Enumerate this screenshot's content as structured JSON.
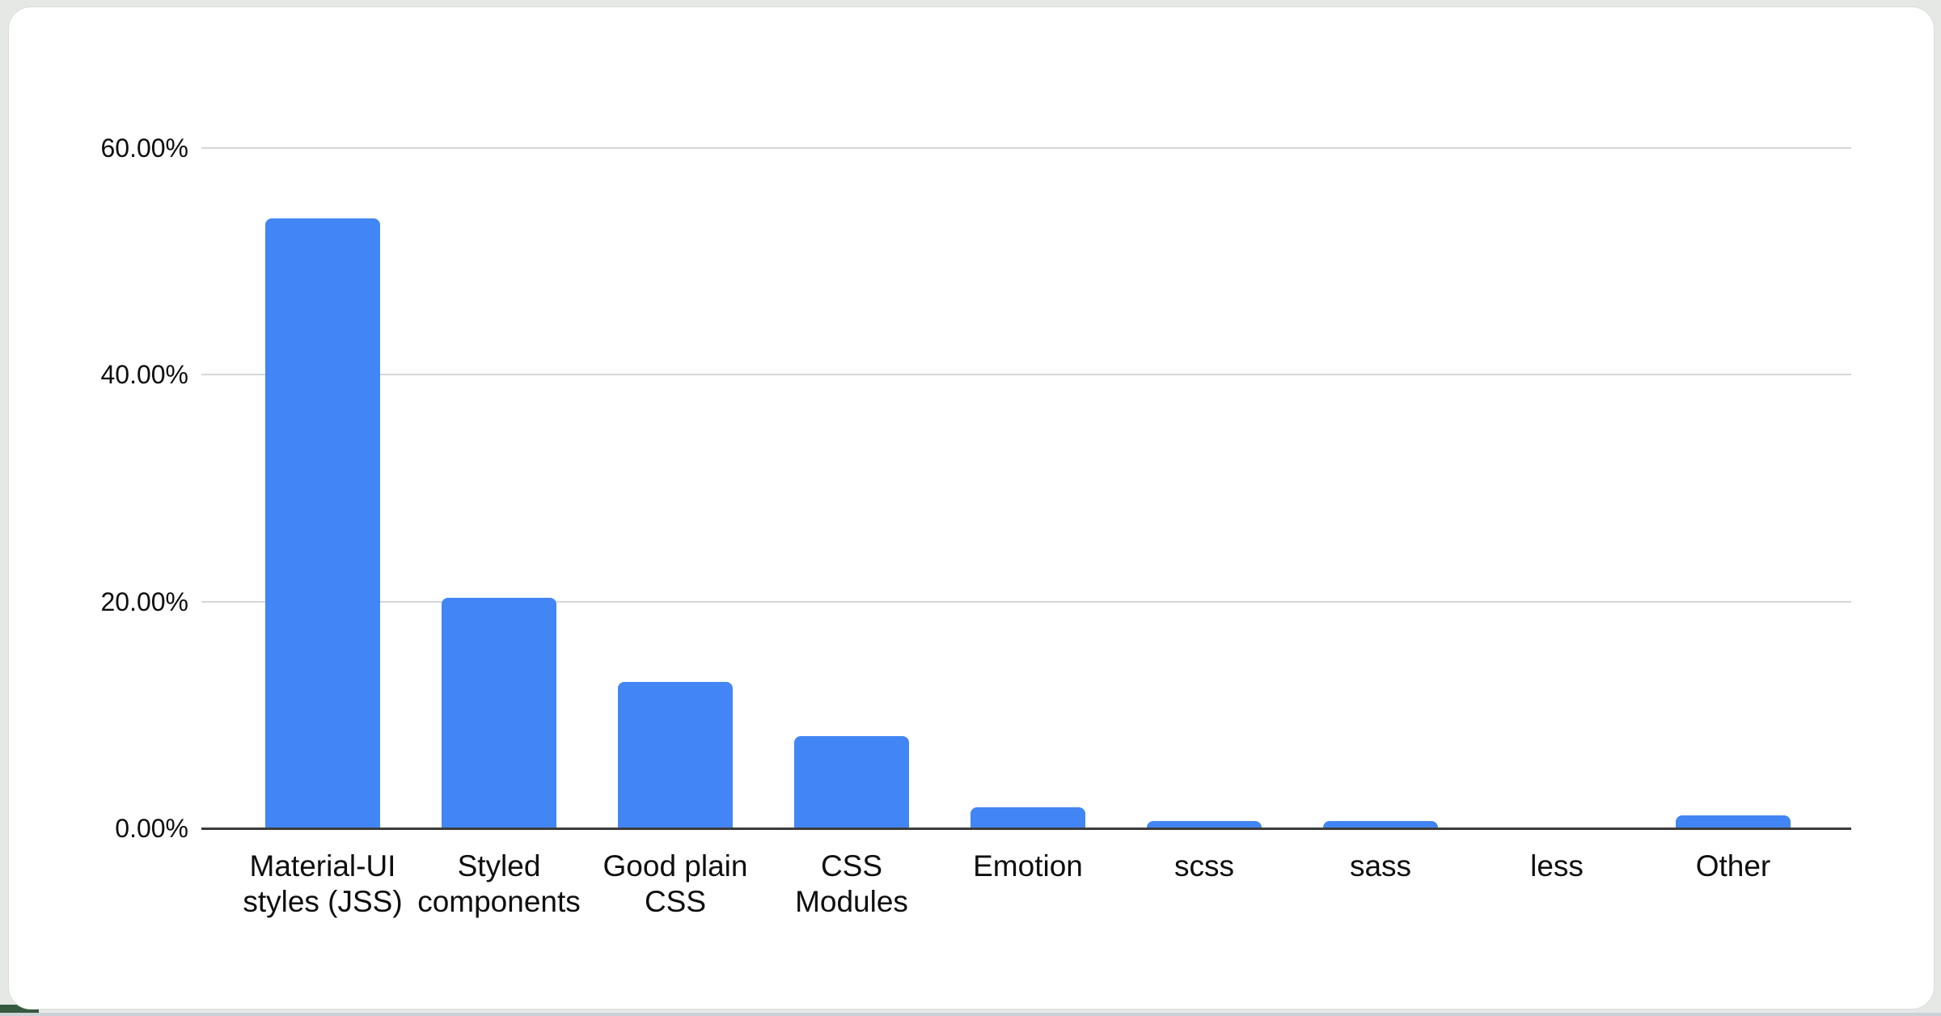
{
  "page": {
    "background_color": "#e6e8e6",
    "bottom_strip_color": "#ccd1d5",
    "corner_accent_color": "#35593f",
    "card_background": "#ffffff",
    "card_border_color": "#d9ddd9"
  },
  "chart_data": {
    "type": "bar",
    "title": "",
    "xlabel": "",
    "ylabel": "",
    "legend": "none",
    "grid": true,
    "value_unit": "percent",
    "categories": [
      "Material-UI styles (JSS)",
      "Styled components",
      "Good plain CSS",
      "CSS Modules",
      "Emotion",
      "scss",
      "sass",
      "less",
      "Other"
    ],
    "values": [
      53.8,
      20.3,
      12.9,
      8.1,
      1.85,
      0.65,
      0.65,
      0.05,
      1.15
    ],
    "y_ticks": [
      {
        "label": "0.00%",
        "value": 0
      },
      {
        "label": "20.00%",
        "value": 20
      },
      {
        "label": "40.00%",
        "value": 40
      },
      {
        "label": "60.00%",
        "value": 60
      }
    ],
    "ylim": [
      0,
      63
    ],
    "bar_color": "#4285f4",
    "gridline_color": "#d6d6d6",
    "axis_line_color": "#3b3b3b",
    "label_color": "#0e0e0e"
  }
}
